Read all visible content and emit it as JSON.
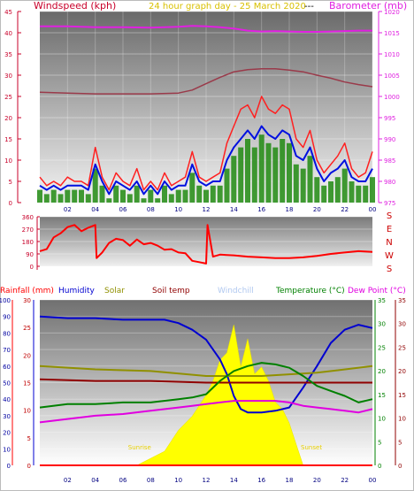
{
  "header": {
    "left_label": "Windspeed (kph)",
    "center_label": "24 hour graph day - 25 March 2020",
    "separator": "---",
    "right_label": "Barometer (mb)"
  },
  "colors": {
    "windspeed": "#c8002a",
    "gust": "#ff2020",
    "avg_wind": "#0010e0",
    "wind_green": "#208a10",
    "barometer": "#e020e0",
    "baro_dark": "#9a3a4a",
    "date": "#d8c000",
    "direction": "#ff0000",
    "rainfall": "#ff0000",
    "humidity": "#0000d0",
    "solar": "#909000",
    "soiltemp": "#900000",
    "windchill": "#b0c8f0",
    "temperature": "#008000",
    "dewpoint": "#e000e0",
    "solar_fill": "#ffff00"
  },
  "x_ticks": [
    "02",
    "04",
    "06",
    "08",
    "10",
    "12",
    "14",
    "16",
    "18",
    "20",
    "22",
    "00"
  ],
  "chart_data": [
    {
      "type": "line",
      "title": "",
      "xlabel": "",
      "ylabel": "Windspeed (kph)",
      "y2label": "Barometer (mb)",
      "ylim": [
        0,
        45
      ],
      "y2lim": [
        975,
        1020
      ],
      "x_range_hours": [
        0,
        24
      ],
      "y_ticks": [
        0,
        5,
        10,
        15,
        20,
        25,
        30,
        35,
        40,
        45
      ],
      "y2_ticks": [
        975,
        980,
        985,
        990,
        995,
        1000,
        1005,
        1010,
        1015,
        1020
      ],
      "grid": true,
      "series": [
        {
          "x": [
            0,
            2,
            4,
            6,
            8,
            10,
            11,
            12,
            13,
            14,
            15,
            16,
            17,
            18,
            19,
            20,
            21,
            22,
            23,
            24
          ],
          "values": [
            1016.5,
            1016.5,
            1016.3,
            1016.3,
            1016.2,
            1016.4,
            1016.6,
            1016.5,
            1016.3,
            1016.0,
            1015.5,
            1015.3,
            1015.4,
            1015.3,
            1015.2,
            1015.2,
            1015.3,
            1015.4,
            1015.5,
            1015.5
          ]
        },
        {
          "x": [
            0,
            2,
            4,
            6,
            8,
            10,
            11,
            12,
            13,
            14,
            15,
            16,
            17,
            18,
            19,
            20,
            21,
            22,
            23,
            24
          ],
          "values": [
            1001,
            1000.8,
            1000.6,
            1000.6,
            1000.6,
            1000.8,
            1001.5,
            1003,
            1004.5,
            1005.8,
            1006.3,
            1006.5,
            1006.5,
            1006.2,
            1005.8,
            1005,
            1004.3,
            1003.4,
            1002.8,
            1002.3
          ]
        },
        {
          "x": [
            0,
            0.5,
            1,
            1.5,
            2,
            2.5,
            3,
            3.5,
            4,
            4.5,
            5,
            5.5,
            6,
            6.5,
            7,
            7.5,
            8,
            8.5,
            9,
            9.5,
            10,
            10.5,
            11,
            11.5,
            12,
            12.5,
            13,
            13.5,
            14,
            14.5,
            15,
            15.5,
            16,
            16.5,
            17,
            17.5,
            18,
            18.5,
            19,
            19.5,
            20,
            20.5,
            21,
            21.5,
            22,
            22.5,
            23,
            23.5,
            24
          ],
          "values": [
            6,
            4,
            5,
            4,
            6,
            5,
            5,
            4,
            13,
            6,
            3,
            7,
            5,
            4,
            8,
            3,
            5,
            3,
            7,
            4,
            5,
            6,
            12,
            6,
            5,
            6,
            7,
            14,
            18,
            22,
            23,
            20,
            25,
            22,
            21,
            23,
            22,
            15,
            13,
            17,
            10,
            7,
            9,
            11,
            14,
            8,
            6,
            7,
            12
          ]
        },
        {
          "x": [
            0,
            0.5,
            1,
            1.5,
            2,
            2.5,
            3,
            3.5,
            4,
            4.5,
            5,
            5.5,
            6,
            6.5,
            7,
            7.5,
            8,
            8.5,
            9,
            9.5,
            10,
            10.5,
            11,
            11.5,
            12,
            12.5,
            13,
            13.5,
            14,
            14.5,
            15,
            15.5,
            16,
            16.5,
            17,
            17.5,
            18,
            18.5,
            19,
            19.5,
            20,
            20.5,
            21,
            21.5,
            22,
            22.5,
            23,
            23.5,
            24
          ],
          "values": [
            4,
            3,
            4,
            3,
            4,
            4,
            4,
            3,
            9,
            5,
            2,
            5,
            4,
            3,
            5,
            2,
            4,
            2,
            5,
            3,
            4,
            4,
            9,
            5,
            4,
            5,
            5,
            10,
            13,
            15,
            17,
            15,
            18,
            16,
            15,
            17,
            16,
            11,
            10,
            13,
            8,
            5,
            7,
            8,
            10,
            6,
            5,
            5,
            8
          ]
        },
        {
          "x": [
            0,
            0.5,
            1,
            1.5,
            2,
            2.5,
            3,
            3.5,
            4,
            4.5,
            5,
            5.5,
            6,
            6.5,
            7,
            7.5,
            8,
            8.5,
            9,
            9.5,
            10,
            10.5,
            11,
            11.5,
            12,
            12.5,
            13,
            13.5,
            14,
            14.5,
            15,
            15.5,
            16,
            16.5,
            17,
            17.5,
            18,
            18.5,
            19,
            19.5,
            20,
            20.5,
            21,
            21.5,
            22,
            22.5,
            23,
            23.5,
            24
          ],
          "values": [
            3,
            2,
            3,
            2,
            3,
            3,
            3,
            2,
            8,
            4,
            1,
            4,
            3,
            2,
            4,
            1,
            3,
            1,
            4,
            2,
            3,
            3,
            7,
            4,
            3,
            4,
            4,
            8,
            11,
            13,
            15,
            13,
            16,
            14,
            13,
            15,
            14,
            9,
            8,
            11,
            6,
            4,
            5,
            6,
            8,
            5,
            4,
            4,
            6
          ]
        }
      ]
    },
    {
      "type": "line",
      "title": "",
      "xlabel": "",
      "ylabel": "",
      "ylim": [
        0,
        360
      ],
      "y_ticks": [
        0,
        90,
        180,
        270,
        360
      ],
      "compass_labels": [
        "S",
        "E",
        "N",
        "W",
        "S"
      ],
      "grid": true,
      "series": [
        {
          "x": [
            0,
            0.5,
            1,
            1.5,
            2,
            2.5,
            3,
            3.5,
            4,
            4.1,
            4.5,
            5,
            5.5,
            6,
            6.5,
            7,
            7.5,
            8,
            8.5,
            9,
            9.5,
            10,
            10.5,
            11,
            11.5,
            12,
            12.1,
            12.5,
            13,
            14,
            15,
            16,
            17,
            18,
            19,
            20,
            21,
            22,
            23,
            24
          ],
          "values": [
            110,
            125,
            210,
            240,
            285,
            300,
            255,
            280,
            300,
            60,
            100,
            170,
            200,
            190,
            150,
            195,
            160,
            170,
            150,
            120,
            125,
            100,
            95,
            40,
            30,
            20,
            300,
            70,
            85,
            80,
            70,
            65,
            60,
            60,
            65,
            75,
            90,
            100,
            110,
            105
          ]
        }
      ]
    },
    {
      "type": "line",
      "title": "",
      "xlabel": "",
      "y_axes": [
        {
          "label": "Rainfall (mm)",
          "ticks": [
            0,
            10,
            20,
            30,
            40,
            50,
            60,
            70,
            80,
            90,
            100
          ]
        },
        {
          "label": "Humidity",
          "ticks": [
            0,
            5,
            10,
            15,
            20,
            25,
            30
          ]
        },
        {
          "label": "Temperature (°C)",
          "ticks": [
            0,
            5,
            10,
            15,
            20,
            25,
            30,
            35
          ]
        },
        {
          "label": "Dew Point (°C)",
          "ticks": [
            0,
            5,
            10,
            15,
            20,
            25,
            30,
            35
          ]
        }
      ],
      "legend": [
        "Rainfall (mm)",
        "Humidity",
        "Solar",
        "Soil temp",
        "Windchill",
        "Temperature (°C)",
        "Dew Point (°C)"
      ],
      "annotations": [
        "Sunrise",
        "Sunset"
      ],
      "series": [
        {
          "name": "Humidity",
          "x": [
            0,
            2,
            4,
            6,
            8,
            9,
            10,
            11,
            12,
            13,
            13.5,
            14,
            14.5,
            15,
            16,
            17,
            18,
            19,
            20,
            21,
            22,
            23,
            24
          ],
          "values": [
            90,
            89,
            89,
            88,
            88,
            88,
            86,
            82,
            76,
            64,
            55,
            42,
            34,
            32,
            32,
            33,
            35,
            47,
            60,
            74,
            82,
            85,
            83
          ]
        },
        {
          "name": "Solar",
          "x": [
            0,
            4,
            8,
            12,
            16,
            20,
            24
          ],
          "values": [
            60,
            58,
            57,
            54,
            54,
            56,
            60
          ]
        },
        {
          "name": "Soil temp",
          "x": [
            0,
            4,
            8,
            12,
            16,
            20,
            24
          ],
          "values": [
            52,
            51,
            51,
            50,
            50,
            50,
            50
          ]
        },
        {
          "name": "Temperature (°C)",
          "x": [
            0,
            2,
            4,
            6,
            8,
            10,
            11,
            12,
            13,
            14,
            15,
            16,
            17,
            18,
            19,
            20,
            21,
            22,
            23,
            24
          ],
          "values": [
            35,
            37,
            37,
            38,
            38,
            40,
            41,
            43,
            51,
            57,
            60,
            62,
            61,
            59,
            54,
            48,
            45,
            42,
            38,
            40
          ]
        },
        {
          "name": "Dew Point (°C)",
          "x": [
            0,
            2,
            4,
            6,
            8,
            10,
            11,
            12,
            13,
            14,
            15,
            16,
            17,
            18,
            19,
            20,
            21,
            22,
            23,
            24
          ],
          "values": [
            26,
            28,
            30,
            31,
            33,
            35,
            36,
            37,
            38,
            39,
            39,
            39,
            39,
            38,
            36,
            35,
            34,
            33,
            32,
            34
          ]
        },
        {
          "name": "Rainfall (mm)",
          "x": [
            0,
            24
          ],
          "values": [
            0,
            0
          ]
        },
        {
          "name": "Solar radiation",
          "x": [
            7,
            8,
            9,
            10,
            11,
            12,
            12.5,
            13,
            13.5,
            14,
            14.5,
            15,
            15.5,
            16,
            16.5,
            17,
            17.5,
            18,
            18.5,
            19
          ],
          "values": [
            0,
            5,
            10,
            25,
            35,
            50,
            60,
            75,
            80,
            100,
            70,
            90,
            65,
            70,
            60,
            45,
            40,
            30,
            15,
            0
          ]
        }
      ]
    }
  ]
}
